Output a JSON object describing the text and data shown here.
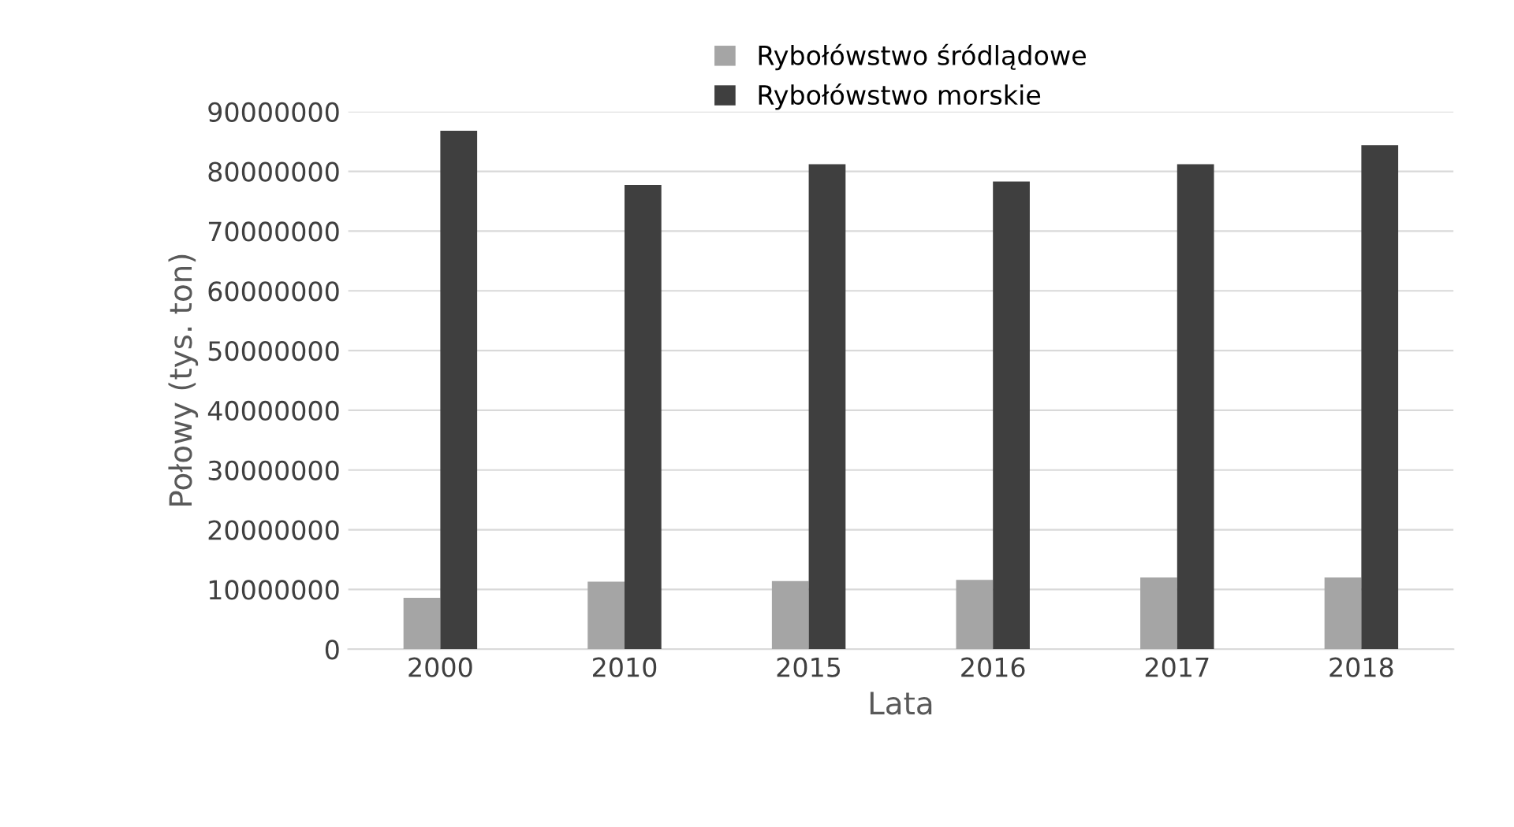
{
  "chart_data": {
    "type": "bar",
    "xlabel": "Lata",
    "ylabel": "Połowy (tys. ton)",
    "categories": [
      "2000",
      "2010",
      "2015",
      "2016",
      "2017",
      "2018"
    ],
    "series": [
      {
        "name": "Rybołówstwo śródlądowe",
        "color": "#a5a5a5",
        "values": [
          8600000,
          11300000,
          11400000,
          11600000,
          12000000,
          12000000
        ]
      },
      {
        "name": "Rybołówstwo morskie",
        "color": "#3f3f3f",
        "values": [
          86800000,
          77700000,
          81200000,
          78300000,
          81200000,
          84400000
        ]
      }
    ],
    "ylim": [
      0,
      90000000
    ],
    "yticks": [
      0,
      10000000,
      20000000,
      30000000,
      40000000,
      50000000,
      60000000,
      70000000,
      80000000,
      90000000
    ],
    "grid": "y",
    "legend": "top"
  }
}
